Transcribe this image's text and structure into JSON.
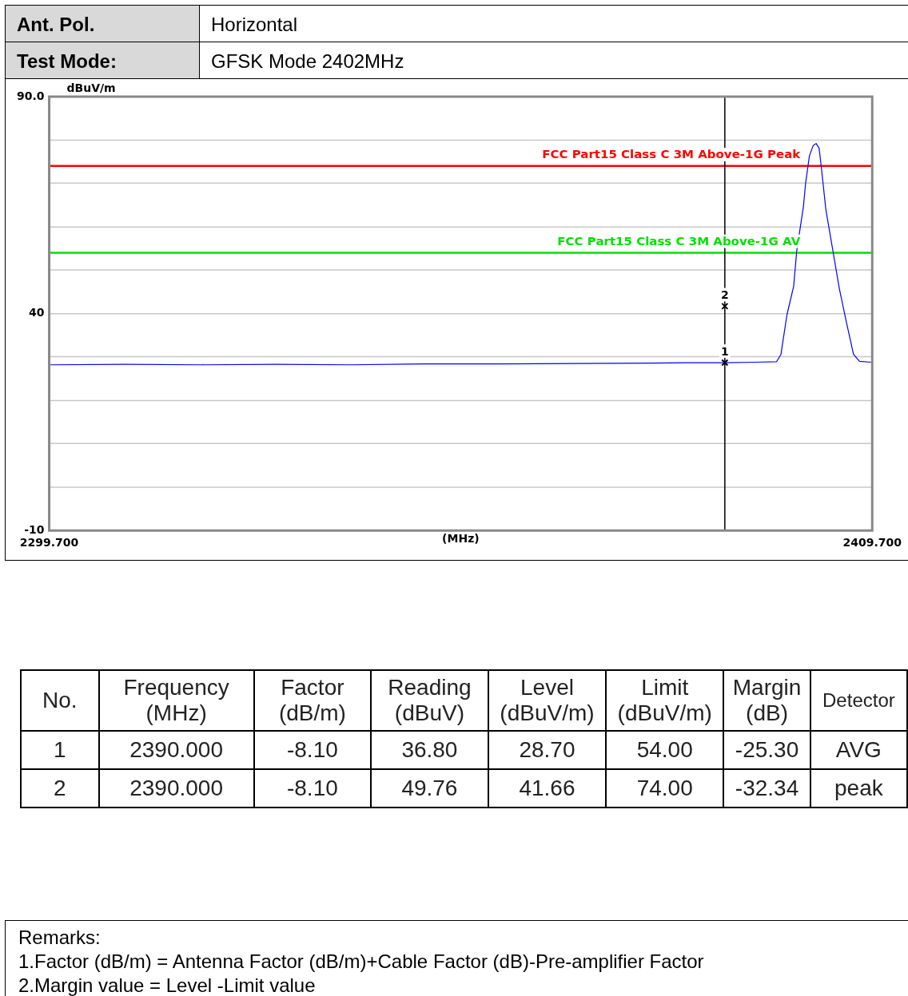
{
  "chart_data": [
    {
      "type": "line",
      "xlabel": "(MHz)",
      "ylabel": "dBuV/m",
      "xlim": [
        2299.7,
        2409.7
      ],
      "ylim": [
        -10,
        90
      ],
      "xticks": [
        {
          "value": 2299.7,
          "label": "2299.700"
        },
        {
          "value": 2409.7,
          "label": "2409.700"
        }
      ],
      "yticks": [
        {
          "value": 90,
          "label": "90.0"
        },
        {
          "value": 80,
          "label": null
        },
        {
          "value": 70,
          "label": null
        },
        {
          "value": 60,
          "label": null
        },
        {
          "value": 50,
          "label": null
        },
        40,
        {
          "value": 30,
          "label": null
        },
        {
          "value": 20,
          "label": null
        },
        {
          "value": 10,
          "label": null
        },
        {
          "value": 0,
          "label": null
        },
        -10
      ],
      "grid": "y",
      "legend": false,
      "marker": "none",
      "line_style": "solid",
      "series": [
        {
          "color": "#0000ff",
          "x": [
            2299.7,
            2310,
            2320,
            2330,
            2340,
            2350,
            2360,
            2370,
            2380,
            2385,
            2390,
            2394,
            2396.9,
            2397.5,
            2398.3,
            2399.2,
            2399.6,
            2400.5,
            2400.8,
            2401.3,
            2401.8,
            2402.2,
            2402.6,
            2402.9,
            2403.5,
            2404.4,
            2405.3,
            2406.2,
            2407.2,
            2408.0,
            2409.6
          ],
          "values": [
            28.2,
            28.3,
            28.2,
            28.3,
            28.2,
            28.4,
            28.4,
            28.5,
            28.6,
            28.7,
            28.7,
            28.8,
            28.9,
            30.6,
            39.7,
            46.3,
            54.3,
            64.6,
            70.1,
            76.3,
            78.7,
            79.2,
            78.1,
            73.7,
            64.0,
            54.9,
            45.8,
            38.4,
            30.6,
            29.0,
            28.8
          ]
        },
        {
          "type": "scatter",
          "marker": "cross",
          "color": "#000000",
          "x": [
            2390,
            2390
          ],
          "values": [
            28.7,
            41.7
          ]
        }
      ],
      "ref_lines": [
        {
          "axis": "y",
          "value": 74,
          "label": "FCC Part15 Class C 3M Above-1G Peak",
          "color": "#ff0000"
        },
        {
          "axis": "y",
          "value": 54,
          "label": "FCC Part15 Class C 3M Above-1G AV",
          "color": "#00e000"
        },
        {
          "axis": "x",
          "value": 2390,
          "color": "#000000"
        }
      ],
      "annotations": [
        "Ant. Pol.",
        "Horizontal",
        "Test Mode:",
        "GFSK Mode 2402MHz",
        {
          "text": "1",
          "x": 2390,
          "y": 28.7
        },
        {
          "text": "2",
          "x": 2390,
          "y": 41.7
        },
        "Remarks:",
        "1.Factor (dB/m) = Antenna Factor (dB/m)+Cable Factor (dB)-Pre-amplifier Factor",
        "2.Margin value = Level -Limit value"
      ]
    },
    {
      "type": "other",
      "categories": [
        "No.",
        "Frequency\n(MHz)",
        "Factor\n(dB/m)",
        "Reading\n(dBuV)",
        "Level\n(dBuV/m)",
        "Limit\n(dBuV/m)",
        "Margin\n(dB)",
        "Detector"
      ],
      "cell_labels": [
        [
          "1",
          "2390.000",
          "-8.10",
          "36.80",
          "28.70",
          "54.00",
          "-25.30",
          "AVG"
        ],
        [
          "2",
          "2390.000",
          "-8.10",
          "49.76",
          "41.66",
          "74.00",
          "-32.34",
          "peak"
        ]
      ]
    }
  ]
}
